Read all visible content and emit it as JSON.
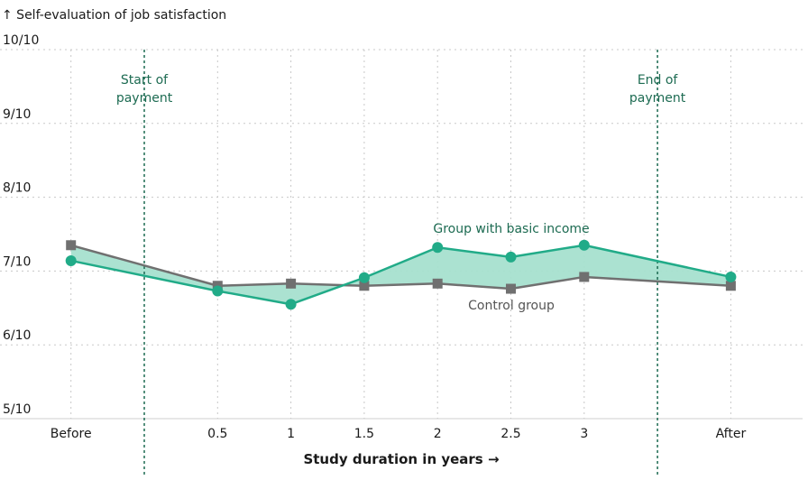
{
  "chart_data": {
    "type": "line",
    "ylabel": "↑ Self-evaluation of job satisfaction",
    "xlabel": "Study duration in years →",
    "x": [
      -0.5,
      0.5,
      1,
      1.5,
      2,
      2.5,
      3,
      4
    ],
    "categories": [
      "Before",
      "0.5",
      "1",
      "1.5",
      "2",
      "2.5",
      "3",
      "After"
    ],
    "ylim": [
      5,
      10
    ],
    "yticks": [
      5,
      6,
      7,
      8,
      9,
      10
    ],
    "ytick_labels": [
      "5/10",
      "6/10",
      "7/10",
      "8/10",
      "9/10",
      "10/10"
    ],
    "grid": true,
    "series": [
      {
        "name": "Group with basic income",
        "marker": "circle",
        "color": "#21ab88",
        "values": [
          7.14,
          6.73,
          6.55,
          6.91,
          7.32,
          7.19,
          7.35,
          6.92
        ]
      },
      {
        "name": "Control group",
        "marker": "square",
        "color": "#707070",
        "values": [
          7.35,
          6.8,
          6.83,
          6.8,
          6.83,
          6.76,
          6.92,
          6.8
        ]
      }
    ],
    "fill_between": {
      "color": "#a6e0cf"
    },
    "events": [
      {
        "x": 0,
        "label": [
          "Start of",
          "payment"
        ]
      },
      {
        "x": 3.5,
        "label": [
          "End of",
          "payment"
        ]
      }
    ],
    "event_color": "#1d6b52"
  }
}
